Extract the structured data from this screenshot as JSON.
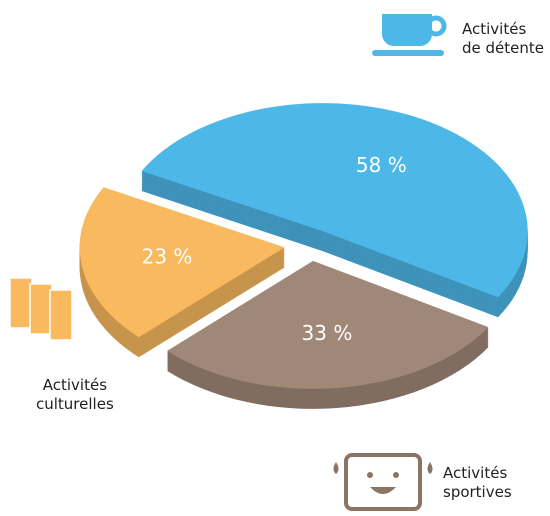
{
  "chart_data": {
    "type": "pie",
    "categories": [
      "Activités\nde détente",
      "Activités\nsportives",
      "Activités\nculturelles"
    ],
    "values": [
      58,
      33,
      23
    ],
    "value_labels": [
      "58 %",
      "33 %",
      "23 %"
    ],
    "colors": [
      "#4db8e8",
      "#a08878",
      "#f9b95f"
    ]
  }
}
